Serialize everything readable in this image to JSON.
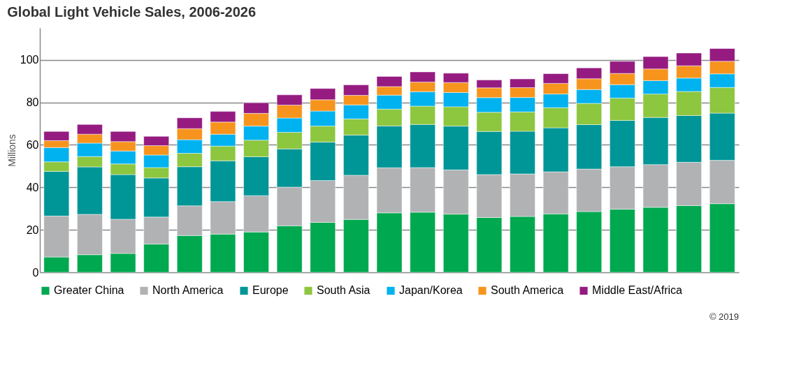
{
  "chart_data": {
    "type": "bar",
    "title": "Global Light Vehicle Sales, 2006-2026",
    "ylabel": "Millions",
    "categories": [
      null,
      null,
      null,
      null,
      null,
      null,
      null,
      null,
      null,
      null,
      null,
      null,
      null,
      null,
      null,
      null,
      null,
      null,
      null,
      null,
      null
    ],
    "stacked": true,
    "ylim": [
      0,
      115
    ],
    "yticks": [
      0,
      20,
      40,
      60,
      80,
      100
    ],
    "grid": "y",
    "legend": "bottom",
    "tick_labels": "y",
    "annotations": [
      "© 2019"
    ],
    "series": [
      {
        "name": "Greater China",
        "color": "#00a84f",
        "values": [
          7.2,
          8.3,
          8.9,
          13.3,
          17.3,
          18,
          19,
          21.9,
          23.5,
          24.9,
          28,
          28.3,
          27.4,
          25.8,
          26.3,
          27.5,
          28.6,
          29.7,
          30.6,
          31.4,
          32.3
        ]
      },
      {
        "name": "North America",
        "color": "#b1b2b4",
        "values": [
          19.3,
          19,
          16.1,
          12.7,
          14,
          15.3,
          17.1,
          18.2,
          19.7,
          20.8,
          21.2,
          21,
          20.8,
          20.2,
          20,
          19.8,
          20,
          20,
          20.1,
          20.4,
          20.4
        ]
      },
      {
        "name": "Europe",
        "color": "#009597",
        "values": [
          21,
          22.3,
          21,
          18.4,
          18.4,
          19.2,
          18.3,
          18,
          18.1,
          18.9,
          19.7,
          20.3,
          20.6,
          20.3,
          20.1,
          20.7,
          20.9,
          21.8,
          22.2,
          22,
          22.2
        ]
      },
      {
        "name": "South Asia",
        "color": "#8dc63f",
        "values": [
          4.5,
          4.9,
          5,
          4.9,
          6.3,
          6.9,
          7.8,
          7.8,
          7.5,
          7.6,
          7.9,
          8.6,
          9.1,
          9,
          9.1,
          9.5,
          10,
          10.5,
          11,
          11.3,
          12.1
        ]
      },
      {
        "name": "Japan/Korea",
        "color": "#00b2ef",
        "values": [
          6.7,
          6.3,
          6.1,
          5.9,
          6.4,
          5.6,
          6.6,
          6.7,
          7.1,
          6.6,
          6.6,
          6.8,
          6.7,
          6.9,
          6.8,
          6.4,
          6.5,
          6.3,
          6.3,
          6.3,
          6.4
        ]
      },
      {
        "name": "South America",
        "color": "#f7941d",
        "values": [
          3.3,
          4.2,
          4.4,
          4.4,
          5.2,
          5.7,
          6,
          6.1,
          5.3,
          4.5,
          4,
          4.5,
          4.7,
          4.6,
          4.6,
          5,
          5.1,
          5.3,
          5.5,
          5.8,
          5.9
        ]
      },
      {
        "name": "Middle East/Africa",
        "color": "#951b81",
        "values": [
          4.3,
          4.6,
          4.8,
          4.4,
          5.1,
          5,
          5,
          4.8,
          5.3,
          4.9,
          4.8,
          4.8,
          4.4,
          3.7,
          4.1,
          4.6,
          5.1,
          5.7,
          5.8,
          6,
          6
        ]
      }
    ]
  }
}
